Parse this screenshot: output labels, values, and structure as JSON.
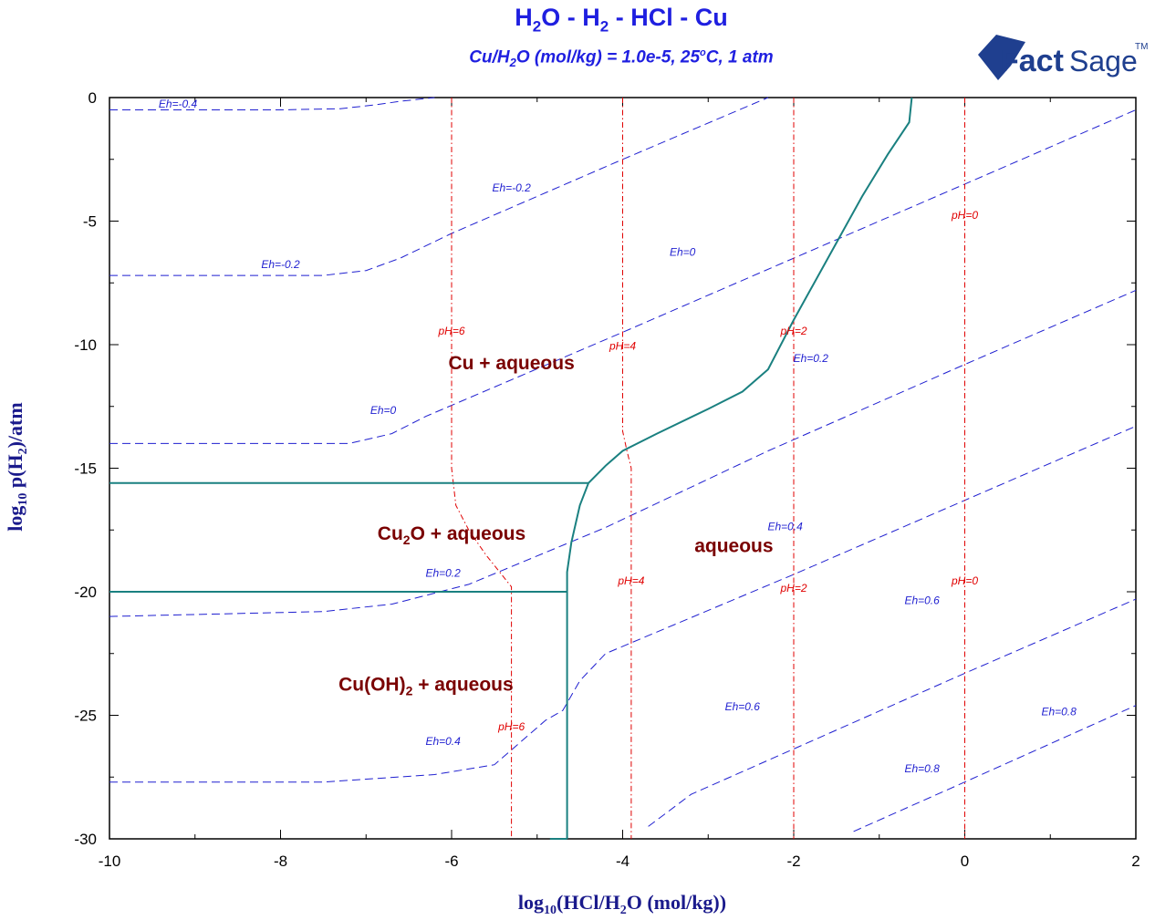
{
  "title": {
    "main_parts": [
      "H",
      "2",
      "O - H",
      "2",
      " - HCl - Cu"
    ]
  },
  "subtitle": {
    "parts": [
      "Cu/H",
      "2",
      "O (mol/kg) = 1.0e-5, 25",
      "o",
      "C, 1 atm"
    ]
  },
  "logo": {
    "text_fact": "Fact",
    "text_sage": "Sage",
    "tm": "TM",
    "color": "#1f3f8f"
  },
  "colors": {
    "phase_boundary": "#1a8080",
    "eh_line": "#1f1fd0",
    "ph_line": "#e00000",
    "region_label": "#7a0000",
    "title": "#1f1fe0"
  },
  "chart_data": {
    "type": "line",
    "xlabel_parts": [
      "log",
      "10",
      "(HCl/H",
      "2",
      "O (mol/kg))"
    ],
    "ylabel_parts": [
      "log",
      "10",
      " p(H",
      "2",
      ")/atm"
    ],
    "xlim": [
      -10,
      2
    ],
    "ylim": [
      -30,
      0
    ],
    "x_ticks": [
      -10,
      -8,
      -6,
      -4,
      -2,
      0,
      2
    ],
    "y_ticks": [
      0,
      -5,
      -10,
      -15,
      -20,
      -25,
      -30
    ],
    "phase_boundaries": [
      {
        "points": [
          [
            -10,
            -15.6
          ],
          [
            -4.4,
            -15.6
          ]
        ]
      },
      {
        "points": [
          [
            -10,
            -20
          ],
          [
            -4.65,
            -20
          ]
        ]
      },
      {
        "points": [
          [
            -4.65,
            -30
          ],
          [
            -4.65,
            -19.2
          ],
          [
            -4.6,
            -18.0
          ],
          [
            -4.5,
            -16.5
          ],
          [
            -4.4,
            -15.6
          ],
          [
            -4.2,
            -14.9
          ],
          [
            -4.0,
            -14.3
          ],
          [
            -3.6,
            -13.6
          ],
          [
            -3.0,
            -12.6
          ],
          [
            -2.6,
            -11.9
          ],
          [
            -2.3,
            -11.0
          ],
          [
            -2.0,
            -9.0
          ],
          [
            -1.6,
            -6.5
          ],
          [
            -1.2,
            -4.0
          ],
          [
            -0.9,
            -2.3
          ],
          [
            -0.65,
            -1.0
          ],
          [
            -0.62,
            0.0
          ]
        ]
      },
      {
        "points": [
          [
            -4.65,
            -30
          ],
          [
            -4.85,
            -30.0
          ]
        ]
      }
    ],
    "eh_lines": [
      {
        "points": [
          [
            -10,
            -0.5
          ],
          [
            -8.0,
            -0.5
          ],
          [
            -7.3,
            -0.45
          ],
          [
            -6.9,
            -0.3
          ],
          [
            -6.6,
            -0.15
          ],
          [
            -6.2,
            0.0
          ]
        ]
      },
      {
        "points": [
          [
            -10,
            -7.2
          ],
          [
            -7.5,
            -7.2
          ],
          [
            -7.0,
            -7.0
          ],
          [
            -6.6,
            -6.5
          ],
          [
            -6.0,
            -5.5
          ],
          [
            -4.0,
            -2.5
          ],
          [
            -2.3,
            0.0
          ]
        ]
      },
      {
        "points": [
          [
            -10,
            -14.0
          ],
          [
            -7.2,
            -14.0
          ],
          [
            -6.7,
            -13.6
          ],
          [
            -6.3,
            -12.9
          ],
          [
            -4.0,
            -9.5
          ],
          [
            0.0,
            -3.5
          ],
          [
            1.0,
            -2.0
          ],
          [
            2.0,
            -0.5
          ]
        ]
      },
      {
        "points": [
          [
            -10,
            -21.0
          ],
          [
            -7.5,
            -20.8
          ],
          [
            -6.7,
            -20.5
          ],
          [
            -5.8,
            -19.7
          ],
          [
            -4.2,
            -17.4
          ],
          [
            -2.3,
            -14.3
          ],
          [
            0.0,
            -10.8
          ],
          [
            2.0,
            -7.8
          ]
        ]
      },
      {
        "points": [
          [
            -10,
            -27.7
          ],
          [
            -7.5,
            -27.7
          ],
          [
            -6.2,
            -27.4
          ],
          [
            -5.5,
            -27.0
          ],
          [
            -4.9,
            -25.2
          ],
          [
            -4.7,
            -24.8
          ],
          [
            -4.5,
            -23.6
          ],
          [
            -4.2,
            -22.5
          ],
          [
            -2.0,
            -19.3
          ],
          [
            0.0,
            -16.3
          ],
          [
            2.0,
            -13.3
          ]
        ]
      },
      {
        "points": [
          [
            -3.7,
            -29.5
          ],
          [
            -3.2,
            -28.2
          ],
          [
            0.0,
            -23.3
          ],
          [
            2.0,
            -20.3
          ]
        ]
      },
      {
        "points": [
          [
            -1.3,
            -29.7
          ],
          [
            0.0,
            -27.7
          ],
          [
            2.0,
            -24.6
          ]
        ]
      }
    ],
    "ph_lines": [
      {
        "points": [
          [
            -6.0,
            0.0
          ],
          [
            -6.0,
            -15.0
          ],
          [
            -5.95,
            -16.5
          ],
          [
            -5.8,
            -17.5
          ],
          [
            -5.6,
            -18.5
          ],
          [
            -5.3,
            -19.8
          ],
          [
            -5.3,
            -30.0
          ]
        ]
      },
      {
        "points": [
          [
            -4.0,
            0.0
          ],
          [
            -4.0,
            -13.5
          ],
          [
            -3.95,
            -14.3
          ],
          [
            -3.9,
            -15.0
          ],
          [
            -3.9,
            -30.0
          ]
        ]
      },
      {
        "points": [
          [
            -2.0,
            0.0
          ],
          [
            -2.0,
            -30.0
          ]
        ]
      },
      {
        "points": [
          [
            0.0,
            0.0
          ],
          [
            0.0,
            -30.0
          ]
        ]
      }
    ],
    "eh_labels": [
      {
        "text": "Eh=-0.4",
        "x": -9.2,
        "y": -0.4
      },
      {
        "text": "Eh=-0.2",
        "x": -5.3,
        "y": -3.8
      },
      {
        "text": "Eh=-0.2",
        "x": -8.0,
        "y": -6.9
      },
      {
        "text": "Eh=0",
        "x": -3.3,
        "y": -6.4
      },
      {
        "text": "Eh=0",
        "x": -6.8,
        "y": -12.8
      },
      {
        "text": "Eh=0.2",
        "x": -1.8,
        "y": -10.7
      },
      {
        "text": "Eh=0.4",
        "x": -2.1,
        "y": -17.5
      },
      {
        "text": "Eh=0.2",
        "x": -6.1,
        "y": -19.4
      },
      {
        "text": "Eh=0.6",
        "x": -0.5,
        "y": -20.5
      },
      {
        "text": "Eh=0.6",
        "x": -2.6,
        "y": -24.8
      },
      {
        "text": "Eh=0.4",
        "x": -6.1,
        "y": -26.2
      },
      {
        "text": "Eh=0.8",
        "x": 1.1,
        "y": -25.0
      },
      {
        "text": "Eh=0.8",
        "x": -0.5,
        "y": -27.3
      }
    ],
    "ph_labels": [
      {
        "text": "pH=0",
        "x": 0.0,
        "y": -4.9
      },
      {
        "text": "pH=2",
        "x": -2.0,
        "y": -9.6
      },
      {
        "text": "pH=4",
        "x": -4.0,
        "y": -10.2
      },
      {
        "text": "pH=6",
        "x": -6.0,
        "y": -9.6
      },
      {
        "text": "pH=0",
        "x": 0.0,
        "y": -19.7
      },
      {
        "text": "pH=2",
        "x": -2.0,
        "y": -20.0
      },
      {
        "text": "pH=4",
        "x": -3.9,
        "y": -19.7
      },
      {
        "text": "pH=6",
        "x": -5.3,
        "y": -25.6
      }
    ],
    "region_labels": [
      {
        "parts": [
          "Cu + aqueous"
        ],
        "x": -5.3,
        "y": -11.0
      },
      {
        "parts": [
          "Cu",
          "2",
          "O + aqueous"
        ],
        "x": -6.0,
        "y": -17.9
      },
      {
        "parts": [
          "aqueous"
        ],
        "x": -2.7,
        "y": -18.4
      },
      {
        "parts": [
          "Cu(OH)",
          "2",
          " + aqueous"
        ],
        "x": -6.3,
        "y": -24.0
      }
    ]
  }
}
